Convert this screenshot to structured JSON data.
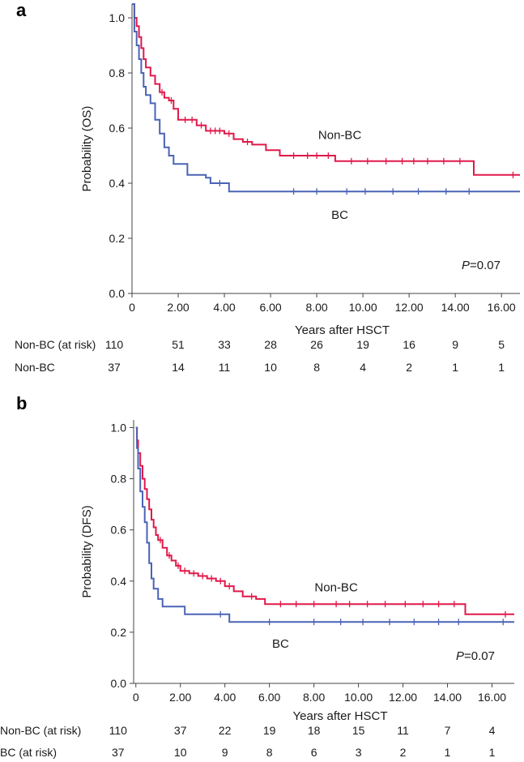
{
  "colors": {
    "nonbc": "#e0194a",
    "bc": "#4a63b5",
    "axis": "#444444"
  },
  "chart_data": [
    {
      "type": "line",
      "panel": "a",
      "xlabel": "Years after HSCT",
      "ylabel": "Probability (OS)",
      "xlim": [
        0,
        16.8
      ],
      "ylim": [
        0,
        1.05
      ],
      "xticks": [
        0,
        2,
        4,
        6,
        8,
        10,
        12,
        14,
        16
      ],
      "xtick_labels": [
        "0",
        "2.00",
        "4.00",
        "6.00",
        "8.00",
        "10.00",
        "12.00",
        "14.00",
        "16.00"
      ],
      "yticks": [
        0,
        0.2,
        0.4,
        0.6,
        0.8,
        1.0
      ],
      "ytick_labels": [
        "0.0",
        "0.2",
        "0.4",
        "0.6",
        "0.8",
        "1.0"
      ],
      "p_value": {
        "italic": "P",
        "rest": "=0.07"
      },
      "series": [
        {
          "name": "Non-BC",
          "color_key": "nonbc",
          "steps": [
            [
              0,
              1.05
            ],
            [
              0.1,
              1.0
            ],
            [
              0.2,
              0.97
            ],
            [
              0.3,
              0.93
            ],
            [
              0.4,
              0.89
            ],
            [
              0.5,
              0.85
            ],
            [
              0.6,
              0.82
            ],
            [
              0.8,
              0.79
            ],
            [
              1.0,
              0.76
            ],
            [
              1.2,
              0.73
            ],
            [
              1.4,
              0.71
            ],
            [
              1.6,
              0.7
            ],
            [
              1.8,
              0.67
            ],
            [
              2.0,
              0.63
            ],
            [
              2.8,
              0.61
            ],
            [
              3.2,
              0.59
            ],
            [
              4.0,
              0.58
            ],
            [
              4.4,
              0.56
            ],
            [
              4.8,
              0.55
            ],
            [
              5.2,
              0.54
            ],
            [
              5.8,
              0.52
            ],
            [
              6.4,
              0.5
            ],
            [
              8.8,
              0.48
            ],
            [
              14.8,
              0.43
            ],
            [
              16.8,
              0.43
            ]
          ],
          "censors": [
            [
              1.3,
              0.73
            ],
            [
              1.7,
              0.7
            ],
            [
              2.3,
              0.63
            ],
            [
              2.6,
              0.63
            ],
            [
              3.0,
              0.61
            ],
            [
              3.4,
              0.59
            ],
            [
              3.6,
              0.59
            ],
            [
              3.8,
              0.59
            ],
            [
              4.2,
              0.58
            ],
            [
              5.0,
              0.55
            ],
            [
              7.0,
              0.5
            ],
            [
              7.6,
              0.5
            ],
            [
              8.0,
              0.5
            ],
            [
              8.5,
              0.5
            ],
            [
              9.5,
              0.48
            ],
            [
              10.2,
              0.48
            ],
            [
              11.0,
              0.48
            ],
            [
              11.7,
              0.48
            ],
            [
              12.2,
              0.48
            ],
            [
              12.8,
              0.48
            ],
            [
              13.5,
              0.48
            ],
            [
              14.2,
              0.48
            ],
            [
              16.5,
              0.43
            ]
          ],
          "label": {
            "text": "Non-BC",
            "at": [
              9.0,
              0.56
            ]
          }
        },
        {
          "name": "BC",
          "color_key": "bc",
          "steps": [
            [
              0,
              1.05
            ],
            [
              0.1,
              0.95
            ],
            [
              0.2,
              0.9
            ],
            [
              0.3,
              0.85
            ],
            [
              0.4,
              0.8
            ],
            [
              0.5,
              0.75
            ],
            [
              0.6,
              0.72
            ],
            [
              0.8,
              0.69
            ],
            [
              1.0,
              0.63
            ],
            [
              1.2,
              0.58
            ],
            [
              1.4,
              0.53
            ],
            [
              1.6,
              0.5
            ],
            [
              1.8,
              0.47
            ],
            [
              2.4,
              0.43
            ],
            [
              3.2,
              0.42
            ],
            [
              3.4,
              0.4
            ],
            [
              4.0,
              0.4
            ],
            [
              4.2,
              0.37
            ],
            [
              16.8,
              0.37
            ]
          ],
          "censors": [
            [
              3.8,
              0.4
            ],
            [
              7.0,
              0.37
            ],
            [
              8.0,
              0.37
            ],
            [
              9.3,
              0.37
            ],
            [
              10.1,
              0.37
            ],
            [
              11.3,
              0.37
            ],
            [
              12.4,
              0.37
            ],
            [
              13.6,
              0.37
            ],
            [
              14.6,
              0.37
            ]
          ],
          "label": {
            "text": "BC",
            "at": [
              9.0,
              0.27
            ]
          }
        }
      ],
      "risk_table": {
        "rows": [
          {
            "label": "Non-BC (at risk)",
            "values": [
              "110",
              "51",
              "33",
              "28",
              "26",
              "19",
              "16",
              "9",
              "5"
            ]
          },
          {
            "label": "Non-BC",
            "values": [
              "37",
              "14",
              "11",
              "10",
              "8",
              "4",
              "2",
              "1",
              "1"
            ]
          }
        ]
      }
    },
    {
      "type": "line",
      "panel": "b",
      "xlabel": "Years after HSCT",
      "ylabel": "Probability (DFS)",
      "xlim": [
        -0.1,
        17.0
      ],
      "ylim": [
        0,
        1.03
      ],
      "xticks": [
        0,
        2,
        4,
        6,
        8,
        10,
        12,
        14,
        16
      ],
      "xtick_labels": [
        "0",
        "2.00",
        "4.00",
        "6.00",
        "8.00",
        "10.00",
        "12.00",
        "14.00",
        "16.00"
      ],
      "yticks": [
        0,
        0.2,
        0.4,
        0.6,
        0.8,
        1.0
      ],
      "ytick_labels": [
        "0.0",
        "0.2",
        "0.4",
        "0.6",
        "0.8",
        "1.0"
      ],
      "p_value": {
        "italic": "P",
        "rest": "=0.07"
      },
      "series": [
        {
          "name": "Non-BC",
          "color_key": "nonbc",
          "steps": [
            [
              0,
              1.0
            ],
            [
              0.05,
              0.95
            ],
            [
              0.1,
              0.9
            ],
            [
              0.2,
              0.85
            ],
            [
              0.3,
              0.8
            ],
            [
              0.4,
              0.76
            ],
            [
              0.5,
              0.72
            ],
            [
              0.6,
              0.68
            ],
            [
              0.7,
              0.64
            ],
            [
              0.8,
              0.61
            ],
            [
              0.9,
              0.58
            ],
            [
              1.0,
              0.56
            ],
            [
              1.2,
              0.53
            ],
            [
              1.4,
              0.5
            ],
            [
              1.6,
              0.48
            ],
            [
              1.8,
              0.46
            ],
            [
              2.0,
              0.44
            ],
            [
              2.4,
              0.43
            ],
            [
              2.8,
              0.42
            ],
            [
              3.2,
              0.41
            ],
            [
              3.6,
              0.4
            ],
            [
              4.0,
              0.38
            ],
            [
              4.4,
              0.36
            ],
            [
              4.8,
              0.34
            ],
            [
              5.4,
              0.33
            ],
            [
              5.8,
              0.31
            ],
            [
              14.8,
              0.27
            ],
            [
              17.0,
              0.27
            ]
          ],
          "censors": [
            [
              1.1,
              0.56
            ],
            [
              1.5,
              0.5
            ],
            [
              1.9,
              0.46
            ],
            [
              2.2,
              0.44
            ],
            [
              2.6,
              0.43
            ],
            [
              3.0,
              0.42
            ],
            [
              3.4,
              0.41
            ],
            [
              3.8,
              0.4
            ],
            [
              4.2,
              0.38
            ],
            [
              5.2,
              0.34
            ],
            [
              6.5,
              0.31
            ],
            [
              7.2,
              0.31
            ],
            [
              8.0,
              0.31
            ],
            [
              9.0,
              0.31
            ],
            [
              9.6,
              0.31
            ],
            [
              10.4,
              0.31
            ],
            [
              11.2,
              0.31
            ],
            [
              12.1,
              0.31
            ],
            [
              12.9,
              0.31
            ],
            [
              13.6,
              0.31
            ],
            [
              14.3,
              0.31
            ],
            [
              16.6,
              0.27
            ]
          ],
          "label": {
            "text": "Non-BC",
            "at": [
              9.0,
              0.36
            ]
          }
        },
        {
          "name": "BC",
          "color_key": "bc",
          "steps": [
            [
              0,
              1.0
            ],
            [
              0.05,
              0.92
            ],
            [
              0.1,
              0.84
            ],
            [
              0.2,
              0.75
            ],
            [
              0.3,
              0.69
            ],
            [
              0.4,
              0.63
            ],
            [
              0.5,
              0.55
            ],
            [
              0.6,
              0.47
            ],
            [
              0.7,
              0.41
            ],
            [
              0.8,
              0.37
            ],
            [
              1.0,
              0.33
            ],
            [
              1.2,
              0.3
            ],
            [
              2.0,
              0.3
            ],
            [
              2.2,
              0.27
            ],
            [
              4.2,
              0.24
            ],
            [
              17.0,
              0.24
            ]
          ],
          "censors": [
            [
              3.8,
              0.27
            ],
            [
              6.0,
              0.24
            ],
            [
              8.0,
              0.24
            ],
            [
              9.2,
              0.24
            ],
            [
              10.2,
              0.24
            ],
            [
              11.4,
              0.24
            ],
            [
              12.5,
              0.24
            ],
            [
              13.6,
              0.24
            ],
            [
              14.5,
              0.24
            ],
            [
              16.5,
              0.24
            ]
          ],
          "label": {
            "text": "BC",
            "at": [
              6.5,
              0.14
            ]
          }
        }
      ],
      "risk_table": {
        "rows": [
          {
            "label": "Non-BC (at risk)",
            "values": [
              "110",
              "37",
              "22",
              "19",
              "18",
              "15",
              "11",
              "7",
              "4"
            ]
          },
          {
            "label": "BC (at risk)",
            "values": [
              "37",
              "10",
              "9",
              "8",
              "6",
              "3",
              "2",
              "1",
              "1"
            ]
          }
        ]
      }
    }
  ]
}
